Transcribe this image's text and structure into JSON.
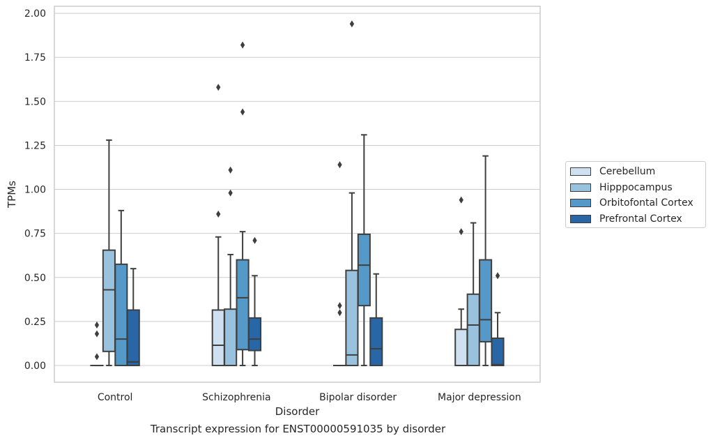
{
  "caption": "Transcript expression for ENST00000591035 by disorder",
  "chart_data": {
    "type": "box",
    "xlabel": "Disorder",
    "ylabel": "TPMs",
    "ylim": [
      -0.095,
      2.04
    ],
    "yticks": [
      0.0,
      0.25,
      0.5,
      0.75,
      1.0,
      1.25,
      1.5,
      1.75,
      2.0
    ],
    "ytick_labels": [
      "0.00",
      "0.25",
      "0.50",
      "0.75",
      "1.00",
      "1.25",
      "1.50",
      "1.75",
      "2.00"
    ],
    "grid": "horizontal",
    "legend_position": "right",
    "categories": [
      "Control",
      "Schizophrenia",
      "Bipolar disorder",
      "Major depression"
    ],
    "series": [
      {
        "name": "Cerebellum",
        "color": "#cfe0f0",
        "boxes": [
          {
            "whislo": 0.0,
            "q1": 0.0,
            "med": 0.0,
            "q3": 0.0,
            "whishi": 0.0,
            "fliers": [
              0.05,
              0.18,
              0.23
            ]
          },
          {
            "whislo": 0.0,
            "q1": 0.0,
            "med": 0.115,
            "q3": 0.315,
            "whishi": 0.73,
            "fliers": [
              0.86,
              1.58
            ]
          },
          {
            "whislo": 0.0,
            "q1": 0.0,
            "med": 0.0,
            "q3": 0.0,
            "whishi": 0.0,
            "fliers": [
              0.3,
              0.34,
              1.14
            ]
          },
          {
            "whislo": 0.0,
            "q1": 0.0,
            "med": 0.0,
            "q3": 0.205,
            "whishi": 0.32,
            "fliers": [
              0.76,
              0.94
            ]
          }
        ]
      },
      {
        "name": "Hipppocampus",
        "color": "#99c2de",
        "boxes": [
          {
            "whislo": 0.0,
            "q1": 0.08,
            "med": 0.43,
            "q3": 0.655,
            "whishi": 1.28,
            "fliers": []
          },
          {
            "whislo": 0.0,
            "q1": 0.0,
            "med": 0.0,
            "q3": 0.32,
            "whishi": 0.63,
            "fliers": [
              0.98,
              1.11
            ]
          },
          {
            "whislo": 0.0,
            "q1": 0.0,
            "med": 0.06,
            "q3": 0.54,
            "whishi": 0.98,
            "fliers": [
              1.94
            ]
          },
          {
            "whislo": 0.0,
            "q1": 0.0,
            "med": 0.23,
            "q3": 0.405,
            "whishi": 0.81,
            "fliers": []
          }
        ]
      },
      {
        "name": "Orbitofontal Cortex",
        "color": "#5499c7",
        "boxes": [
          {
            "whislo": 0.0,
            "q1": 0.0,
            "med": 0.15,
            "q3": 0.575,
            "whishi": 0.88,
            "fliers": []
          },
          {
            "whislo": 0.0,
            "q1": 0.09,
            "med": 0.385,
            "q3": 0.6,
            "whishi": 0.76,
            "fliers": [
              1.44,
              1.82
            ]
          },
          {
            "whislo": 0.0,
            "q1": 0.34,
            "med": 0.57,
            "q3": 0.745,
            "whishi": 1.31,
            "fliers": []
          },
          {
            "whislo": 0.0,
            "q1": 0.135,
            "med": 0.26,
            "q3": 0.6,
            "whishi": 1.19,
            "fliers": []
          }
        ]
      },
      {
        "name": "Prefrontal Cortex",
        "color": "#2866a5",
        "boxes": [
          {
            "whislo": 0.0,
            "q1": 0.0,
            "med": 0.02,
            "q3": 0.315,
            "whishi": 0.55,
            "fliers": []
          },
          {
            "whislo": 0.0,
            "q1": 0.085,
            "med": 0.15,
            "q3": 0.27,
            "whishi": 0.51,
            "fliers": [
              0.71
            ]
          },
          {
            "whislo": 0.0,
            "q1": 0.0,
            "med": 0.095,
            "q3": 0.27,
            "whishi": 0.52,
            "fliers": []
          },
          {
            "whislo": 0.0,
            "q1": 0.0,
            "med": 0.005,
            "q3": 0.155,
            "whishi": 0.3,
            "fliers": [
              0.51
            ]
          }
        ]
      }
    ]
  }
}
